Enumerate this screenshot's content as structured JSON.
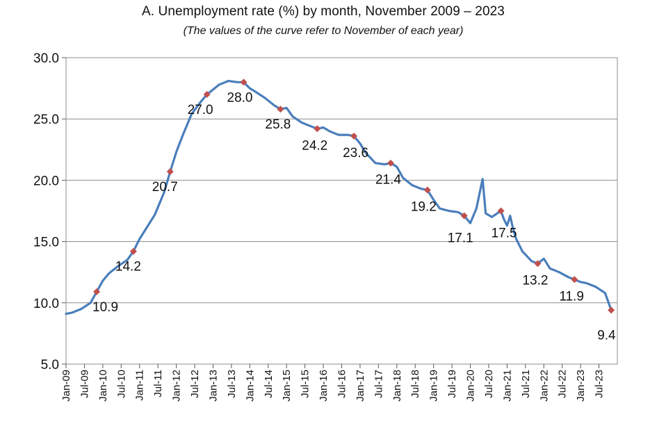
{
  "chart_data": {
    "type": "line",
    "title": "A. Unemployment rate (%) by month, November  2009 – 2023",
    "subtitle": "(The values of the curve refer to November of each year)",
    "ylim": [
      5.0,
      30.0
    ],
    "yticks": [
      "5.0",
      "10.0",
      "15.0",
      "20.0",
      "25.0",
      "30.0"
    ],
    "xticks": [
      "Jan-09",
      "Jul-09",
      "Jan-10",
      "Jul-10",
      "Jan-11",
      "Jul-11",
      "Jan-12",
      "Jul-12",
      "Jan-13",
      "Jul-13",
      "Jan-14",
      "Jul-14",
      "Jan-15",
      "Jul-15",
      "Jan-16",
      "Jul-16",
      "Jan-17",
      "Jul-17",
      "Jan-18",
      "Jul-18",
      "Jan-19",
      "Jul-19",
      "Jan-20",
      "Jul-20",
      "Jan-21",
      "Jul-21",
      "Jan-22",
      "Jul-22",
      "Jan-23",
      "Jul-23"
    ],
    "grid": true,
    "line_color": "#4a7ebb",
    "marker_color": "#c0504d",
    "series": [
      {
        "x": [
          "2009-01",
          "2009-03",
          "2009-06",
          "2009-09",
          "2009-11",
          "2010-01",
          "2010-03",
          "2010-06",
          "2010-09",
          "2010-11",
          "2011-01",
          "2011-03",
          "2011-06",
          "2011-09",
          "2011-11",
          "2012-01",
          "2012-03",
          "2012-06",
          "2012-09",
          "2012-11",
          "2013-01",
          "2013-03",
          "2013-06",
          "2013-09",
          "2013-11",
          "2014-01",
          "2014-03",
          "2014-06",
          "2014-09",
          "2014-11",
          "2015-01",
          "2015-03",
          "2015-06",
          "2015-09",
          "2015-11",
          "2016-01",
          "2016-03",
          "2016-06",
          "2016-09",
          "2016-11",
          "2017-01",
          "2017-03",
          "2017-06",
          "2017-09",
          "2017-11",
          "2018-01",
          "2018-03",
          "2018-06",
          "2018-09",
          "2018-11",
          "2019-01",
          "2019-03",
          "2019-06",
          "2019-09",
          "2019-11",
          "2020-01",
          "2020-03",
          "2020-05",
          "2020-06",
          "2020-08",
          "2020-11",
          "2020-12",
          "2021-01",
          "2021-02",
          "2021-03",
          "2021-04",
          "2021-06",
          "2021-09",
          "2021-11",
          "2022-01",
          "2022-03",
          "2022-06",
          "2022-09",
          "2022-11",
          "2023-01",
          "2023-03",
          "2023-06",
          "2023-09",
          "2023-11"
        ],
        "values": [
          9.1,
          9.2,
          9.5,
          10.0,
          10.9,
          11.8,
          12.4,
          13.0,
          13.5,
          14.2,
          15.2,
          16.0,
          17.2,
          19.0,
          20.7,
          22.3,
          23.6,
          25.4,
          26.4,
          27.0,
          27.4,
          27.8,
          28.1,
          28.0,
          28.0,
          27.5,
          27.2,
          26.7,
          26.1,
          25.8,
          25.9,
          25.2,
          24.7,
          24.4,
          24.2,
          24.3,
          24.0,
          23.7,
          23.7,
          23.6,
          23.0,
          22.2,
          21.4,
          21.3,
          21.4,
          21.1,
          20.2,
          19.6,
          19.3,
          19.2,
          18.4,
          17.7,
          17.5,
          17.4,
          17.1,
          16.5,
          17.7,
          20.1,
          17.3,
          17.0,
          17.5,
          16.8,
          16.3,
          17.1,
          16.0,
          15.2,
          14.2,
          13.4,
          13.2,
          13.6,
          12.8,
          12.5,
          12.1,
          11.9,
          11.7,
          11.6,
          11.3,
          10.8,
          9.4
        ]
      }
    ],
    "markers": {
      "x": [
        "2009-11",
        "2010-11",
        "2011-11",
        "2012-11",
        "2013-11",
        "2014-11",
        "2015-11",
        "2016-11",
        "2017-11",
        "2018-11",
        "2019-11",
        "2020-11",
        "2021-11",
        "2022-11",
        "2023-11"
      ],
      "values": [
        10.9,
        14.2,
        20.7,
        27.0,
        28.0,
        25.8,
        24.2,
        23.6,
        21.4,
        19.2,
        17.1,
        17.5,
        13.2,
        11.9,
        9.4
      ],
      "labels": [
        "10.9",
        "14.2",
        "20.7",
        "27.0",
        "28.0",
        "25.8",
        "24.2",
        "23.6",
        "21.4",
        "19.2",
        "17.1",
        "17.5",
        "13.2",
        "11.9",
        "9.4"
      ]
    }
  }
}
